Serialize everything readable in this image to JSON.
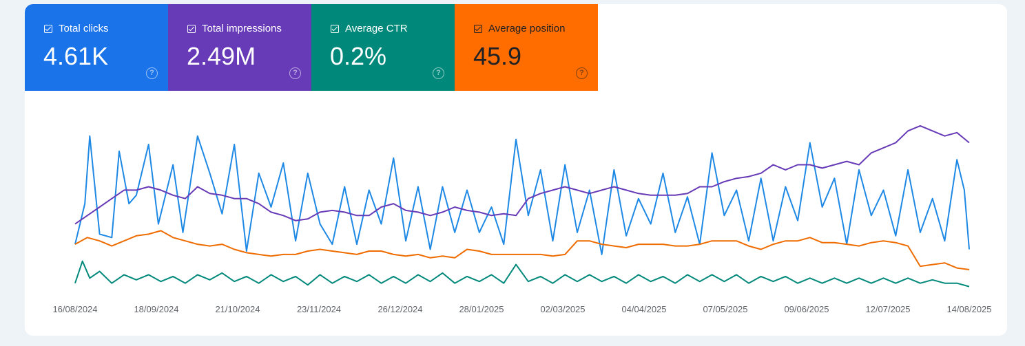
{
  "metrics": [
    {
      "label": "Total clicks",
      "value": "4.61K",
      "color": "#1a73e8",
      "checked": true,
      "icon": "help-icon"
    },
    {
      "label": "Total impressions",
      "value": "2.49M",
      "color": "#673ab7",
      "checked": true,
      "icon": "help-icon"
    },
    {
      "label": "Average CTR",
      "value": "0.2%",
      "color": "#00897b",
      "checked": true,
      "icon": "help-icon"
    },
    {
      "label": "Average position",
      "value": "45.9",
      "color": "#ff6d00",
      "checked": true,
      "icon": "help-icon"
    }
  ],
  "chart_data": {
    "type": "line",
    "x_range": [
      "2024-08-16",
      "2025-08-14"
    ],
    "x_tick_labels": [
      "16/08/2024",
      "18/09/2024",
      "21/10/2024",
      "23/11/2024",
      "26/12/2024",
      "28/01/2025",
      "02/03/2025",
      "04/04/2025",
      "07/05/2025",
      "09/06/2025",
      "12/07/2025",
      "14/08/2025"
    ],
    "y_axis_visible": false,
    "grid": false,
    "series": [
      {
        "name": "Total clicks",
        "color": "#1e88e5",
        "points": [
          [
            0,
            0.28
          ],
          [
            4,
            0.52
          ],
          [
            6,
            0.92
          ],
          [
            10,
            0.34
          ],
          [
            15,
            0.32
          ],
          [
            18,
            0.83
          ],
          [
            22,
            0.52
          ],
          [
            25,
            0.57
          ],
          [
            30,
            0.87
          ],
          [
            34,
            0.4
          ],
          [
            40,
            0.75
          ],
          [
            44,
            0.35
          ],
          [
            50,
            0.92
          ],
          [
            55,
            0.7
          ],
          [
            60,
            0.46
          ],
          [
            65,
            0.87
          ],
          [
            70,
            0.24
          ],
          [
            75,
            0.7
          ],
          [
            80,
            0.5
          ],
          [
            85,
            0.76
          ],
          [
            90,
            0.3
          ],
          [
            95,
            0.7
          ],
          [
            100,
            0.4
          ],
          [
            105,
            0.28
          ],
          [
            110,
            0.62
          ],
          [
            115,
            0.28
          ],
          [
            120,
            0.6
          ],
          [
            125,
            0.4
          ],
          [
            130,
            0.79
          ],
          [
            135,
            0.3
          ],
          [
            140,
            0.62
          ],
          [
            145,
            0.25
          ],
          [
            150,
            0.62
          ],
          [
            155,
            0.35
          ],
          [
            160,
            0.6
          ],
          [
            165,
            0.35
          ],
          [
            170,
            0.5
          ],
          [
            175,
            0.28
          ],
          [
            180,
            0.9
          ],
          [
            185,
            0.45
          ],
          [
            190,
            0.72
          ],
          [
            195,
            0.3
          ],
          [
            200,
            0.75
          ],
          [
            205,
            0.35
          ],
          [
            210,
            0.6
          ],
          [
            215,
            0.22
          ],
          [
            220,
            0.72
          ],
          [
            225,
            0.33
          ],
          [
            230,
            0.55
          ],
          [
            235,
            0.4
          ],
          [
            240,
            0.7
          ],
          [
            245,
            0.35
          ],
          [
            250,
            0.56
          ],
          [
            255,
            0.28
          ],
          [
            260,
            0.82
          ],
          [
            265,
            0.45
          ],
          [
            270,
            0.6
          ],
          [
            275,
            0.3
          ],
          [
            280,
            0.67
          ],
          [
            285,
            0.3
          ],
          [
            290,
            0.62
          ],
          [
            295,
            0.42
          ],
          [
            300,
            0.88
          ],
          [
            305,
            0.5
          ],
          [
            310,
            0.67
          ],
          [
            315,
            0.28
          ],
          [
            320,
            0.72
          ],
          [
            325,
            0.45
          ],
          [
            330,
            0.6
          ],
          [
            335,
            0.33
          ],
          [
            340,
            0.72
          ],
          [
            345,
            0.35
          ],
          [
            350,
            0.55
          ],
          [
            355,
            0.3
          ],
          [
            360,
            0.78
          ],
          [
            363,
            0.6
          ],
          [
            365,
            0.25
          ]
        ]
      },
      {
        "name": "Total impressions",
        "color": "#673ab7",
        "points": [
          [
            0,
            0.4
          ],
          [
            5,
            0.45
          ],
          [
            10,
            0.5
          ],
          [
            15,
            0.55
          ],
          [
            20,
            0.6
          ],
          [
            25,
            0.6
          ],
          [
            30,
            0.62
          ],
          [
            35,
            0.6
          ],
          [
            40,
            0.57
          ],
          [
            45,
            0.55
          ],
          [
            50,
            0.62
          ],
          [
            55,
            0.58
          ],
          [
            60,
            0.57
          ],
          [
            65,
            0.55
          ],
          [
            70,
            0.55
          ],
          [
            75,
            0.52
          ],
          [
            80,
            0.47
          ],
          [
            85,
            0.45
          ],
          [
            90,
            0.42
          ],
          [
            95,
            0.43
          ],
          [
            100,
            0.47
          ],
          [
            105,
            0.48
          ],
          [
            110,
            0.47
          ],
          [
            115,
            0.45
          ],
          [
            120,
            0.45
          ],
          [
            125,
            0.5
          ],
          [
            130,
            0.52
          ],
          [
            135,
            0.48
          ],
          [
            140,
            0.47
          ],
          [
            145,
            0.45
          ],
          [
            150,
            0.47
          ],
          [
            155,
            0.5
          ],
          [
            160,
            0.48
          ],
          [
            165,
            0.47
          ],
          [
            170,
            0.45
          ],
          [
            175,
            0.46
          ],
          [
            180,
            0.45
          ],
          [
            185,
            0.55
          ],
          [
            190,
            0.58
          ],
          [
            195,
            0.6
          ],
          [
            200,
            0.62
          ],
          [
            205,
            0.6
          ],
          [
            210,
            0.58
          ],
          [
            215,
            0.6
          ],
          [
            220,
            0.62
          ],
          [
            225,
            0.6
          ],
          [
            230,
            0.58
          ],
          [
            235,
            0.57
          ],
          [
            240,
            0.57
          ],
          [
            245,
            0.57
          ],
          [
            250,
            0.58
          ],
          [
            255,
            0.62
          ],
          [
            260,
            0.62
          ],
          [
            265,
            0.65
          ],
          [
            270,
            0.67
          ],
          [
            275,
            0.68
          ],
          [
            280,
            0.7
          ],
          [
            285,
            0.75
          ],
          [
            290,
            0.72
          ],
          [
            295,
            0.75
          ],
          [
            300,
            0.75
          ],
          [
            305,
            0.73
          ],
          [
            310,
            0.75
          ],
          [
            315,
            0.77
          ],
          [
            320,
            0.75
          ],
          [
            325,
            0.82
          ],
          [
            330,
            0.85
          ],
          [
            335,
            0.88
          ],
          [
            340,
            0.95
          ],
          [
            345,
            0.98
          ],
          [
            350,
            0.95
          ],
          [
            355,
            0.92
          ],
          [
            360,
            0.94
          ],
          [
            365,
            0.88
          ]
        ]
      },
      {
        "name": "Average CTR",
        "color": "#00897b",
        "points": [
          [
            0,
            0.05
          ],
          [
            3,
            0.18
          ],
          [
            6,
            0.08
          ],
          [
            10,
            0.12
          ],
          [
            15,
            0.05
          ],
          [
            20,
            0.1
          ],
          [
            25,
            0.07
          ],
          [
            30,
            0.1
          ],
          [
            35,
            0.06
          ],
          [
            40,
            0.09
          ],
          [
            45,
            0.05
          ],
          [
            50,
            0.1
          ],
          [
            55,
            0.07
          ],
          [
            60,
            0.11
          ],
          [
            65,
            0.06
          ],
          [
            70,
            0.09
          ],
          [
            75,
            0.05
          ],
          [
            80,
            0.1
          ],
          [
            85,
            0.06
          ],
          [
            90,
            0.09
          ],
          [
            95,
            0.04
          ],
          [
            100,
            0.1
          ],
          [
            105,
            0.05
          ],
          [
            110,
            0.09
          ],
          [
            115,
            0.06
          ],
          [
            120,
            0.1
          ],
          [
            125,
            0.05
          ],
          [
            130,
            0.09
          ],
          [
            135,
            0.05
          ],
          [
            140,
            0.1
          ],
          [
            145,
            0.06
          ],
          [
            150,
            0.11
          ],
          [
            155,
            0.05
          ],
          [
            160,
            0.09
          ],
          [
            165,
            0.06
          ],
          [
            170,
            0.1
          ],
          [
            175,
            0.05
          ],
          [
            180,
            0.16
          ],
          [
            185,
            0.06
          ],
          [
            190,
            0.09
          ],
          [
            195,
            0.05
          ],
          [
            200,
            0.1
          ],
          [
            205,
            0.06
          ],
          [
            210,
            0.1
          ],
          [
            215,
            0.06
          ],
          [
            220,
            0.09
          ],
          [
            225,
            0.05
          ],
          [
            230,
            0.1
          ],
          [
            235,
            0.06
          ],
          [
            240,
            0.09
          ],
          [
            245,
            0.05
          ],
          [
            250,
            0.1
          ],
          [
            255,
            0.06
          ],
          [
            260,
            0.1
          ],
          [
            265,
            0.06
          ],
          [
            270,
            0.1
          ],
          [
            275,
            0.05
          ],
          [
            280,
            0.09
          ],
          [
            285,
            0.06
          ],
          [
            290,
            0.09
          ],
          [
            295,
            0.05
          ],
          [
            300,
            0.08
          ],
          [
            305,
            0.05
          ],
          [
            310,
            0.08
          ],
          [
            315,
            0.05
          ],
          [
            320,
            0.08
          ],
          [
            325,
            0.05
          ],
          [
            330,
            0.08
          ],
          [
            335,
            0.05
          ],
          [
            340,
            0.08
          ],
          [
            345,
            0.05
          ],
          [
            350,
            0.07
          ],
          [
            355,
            0.05
          ],
          [
            360,
            0.05
          ],
          [
            365,
            0.03
          ]
        ]
      },
      {
        "name": "Average position",
        "color": "#ef6c00",
        "points": [
          [
            0,
            0.28
          ],
          [
            5,
            0.32
          ],
          [
            10,
            0.3
          ],
          [
            15,
            0.27
          ],
          [
            20,
            0.3
          ],
          [
            25,
            0.33
          ],
          [
            30,
            0.34
          ],
          [
            35,
            0.36
          ],
          [
            40,
            0.32
          ],
          [
            45,
            0.3
          ],
          [
            50,
            0.28
          ],
          [
            55,
            0.27
          ],
          [
            60,
            0.28
          ],
          [
            65,
            0.25
          ],
          [
            70,
            0.23
          ],
          [
            75,
            0.22
          ],
          [
            80,
            0.21
          ],
          [
            85,
            0.22
          ],
          [
            90,
            0.22
          ],
          [
            95,
            0.24
          ],
          [
            100,
            0.25
          ],
          [
            105,
            0.24
          ],
          [
            110,
            0.23
          ],
          [
            115,
            0.22
          ],
          [
            120,
            0.24
          ],
          [
            125,
            0.24
          ],
          [
            130,
            0.22
          ],
          [
            135,
            0.21
          ],
          [
            140,
            0.22
          ],
          [
            145,
            0.2
          ],
          [
            150,
            0.21
          ],
          [
            155,
            0.2
          ],
          [
            160,
            0.25
          ],
          [
            165,
            0.24
          ],
          [
            170,
            0.22
          ],
          [
            175,
            0.22
          ],
          [
            180,
            0.22
          ],
          [
            185,
            0.22
          ],
          [
            190,
            0.22
          ],
          [
            195,
            0.21
          ],
          [
            200,
            0.22
          ],
          [
            205,
            0.3
          ],
          [
            210,
            0.3
          ],
          [
            215,
            0.28
          ],
          [
            220,
            0.27
          ],
          [
            225,
            0.26
          ],
          [
            230,
            0.28
          ],
          [
            235,
            0.28
          ],
          [
            240,
            0.28
          ],
          [
            245,
            0.27
          ],
          [
            250,
            0.27
          ],
          [
            255,
            0.28
          ],
          [
            260,
            0.3
          ],
          [
            265,
            0.3
          ],
          [
            270,
            0.3
          ],
          [
            275,
            0.27
          ],
          [
            280,
            0.25
          ],
          [
            285,
            0.28
          ],
          [
            290,
            0.3
          ],
          [
            295,
            0.3
          ],
          [
            300,
            0.32
          ],
          [
            305,
            0.29
          ],
          [
            310,
            0.29
          ],
          [
            315,
            0.28
          ],
          [
            320,
            0.27
          ],
          [
            325,
            0.29
          ],
          [
            330,
            0.3
          ],
          [
            335,
            0.29
          ],
          [
            340,
            0.27
          ],
          [
            345,
            0.15
          ],
          [
            350,
            0.16
          ],
          [
            355,
            0.17
          ],
          [
            360,
            0.14
          ],
          [
            365,
            0.13
          ]
        ]
      }
    ]
  }
}
